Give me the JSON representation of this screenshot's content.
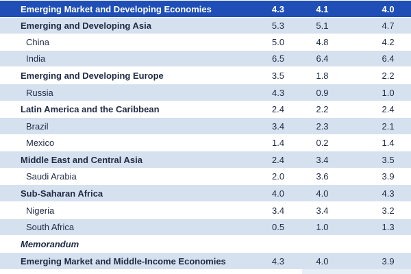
{
  "header": {
    "label": "Emerging Market and Developing Economies",
    "values": [
      "4.3",
      "4.1",
      "4.0"
    ]
  },
  "rows": [
    {
      "label": "Emerging and Developing Asia",
      "kind": "region",
      "values": [
        "5.3",
        "5.1",
        "4.7"
      ]
    },
    {
      "label": "China",
      "kind": "country",
      "values": [
        "5.0",
        "4.8",
        "4.2"
      ]
    },
    {
      "label": "India",
      "kind": "country",
      "values": [
        "6.5",
        "6.4",
        "6.4"
      ]
    },
    {
      "label": "Emerging and Developing Europe",
      "kind": "region",
      "values": [
        "3.5",
        "1.8",
        "2.2"
      ]
    },
    {
      "label": "Russia",
      "kind": "country",
      "values": [
        "4.3",
        "0.9",
        "1.0"
      ]
    },
    {
      "label": "Latin America and the Caribbean",
      "kind": "region",
      "values": [
        "2.4",
        "2.2",
        "2.4"
      ]
    },
    {
      "label": "Brazil",
      "kind": "country",
      "values": [
        "3.4",
        "2.3",
        "2.1"
      ]
    },
    {
      "label": "Mexico",
      "kind": "country",
      "values": [
        "1.4",
        "0.2",
        "1.4"
      ]
    },
    {
      "label": "Middle East and Central Asia",
      "kind": "region",
      "values": [
        "2.4",
        "3.4",
        "3.5"
      ]
    },
    {
      "label": "Saudi Arabia",
      "kind": "country",
      "values": [
        "2.0",
        "3.6",
        "3.9"
      ]
    },
    {
      "label": "Sub-Saharan Africa",
      "kind": "region",
      "values": [
        "4.0",
        "4.0",
        "4.3"
      ]
    },
    {
      "label": "Nigeria",
      "kind": "country",
      "values": [
        "3.4",
        "3.4",
        "3.2"
      ]
    },
    {
      "label": "South Africa",
      "kind": "country",
      "values": [
        "0.5",
        "1.0",
        "1.3"
      ]
    },
    {
      "label": "Memorandum",
      "kind": "memo",
      "values": [
        "",
        "",
        ""
      ]
    },
    {
      "label": "Emerging Market and Middle-Income Economies",
      "kind": "region",
      "values": [
        "4.3",
        "4.0",
        "3.9"
      ]
    }
  ],
  "colors": {
    "header_bg": "#1f4fb6",
    "band_bg": "#d6e1f0",
    "text": "#1f2a44"
  }
}
